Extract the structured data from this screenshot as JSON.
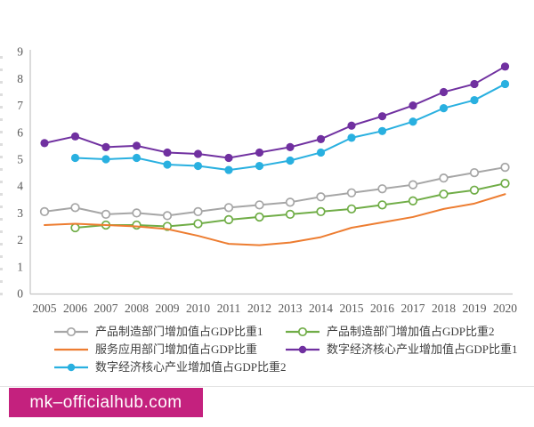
{
  "watermark": {
    "text": "mk–officialhub.com",
    "bg_color": "#c4217e",
    "text_color": "#ffffff"
  },
  "style": {
    "axis_line_color": "#c3c3c3",
    "tick_label_color": "#595959",
    "legend_text_color": "#404040",
    "border_line_color": "#e3e3e3"
  },
  "chart_data": {
    "type": "line",
    "title": "",
    "xlabel": "",
    "ylabel": "",
    "x": [
      2005,
      2006,
      2007,
      2008,
      2009,
      2010,
      2011,
      2012,
      2013,
      2014,
      2015,
      2016,
      2017,
      2018,
      2019,
      2020
    ],
    "ylim": [
      0,
      9
    ],
    "yticks": [
      0,
      1,
      2,
      3,
      4,
      5,
      6,
      7,
      8,
      9
    ],
    "grid": false,
    "legend_position": "bottom",
    "series": [
      {
        "name": "产品制造部门增加值占GDP比重1",
        "color": "#a6a6a6",
        "marker": "open-circle",
        "values": [
          3.05,
          3.2,
          2.95,
          3.0,
          2.9,
          3.05,
          3.2,
          3.3,
          3.4,
          3.6,
          3.75,
          3.9,
          4.05,
          4.3,
          4.5,
          4.7
        ]
      },
      {
        "name": "产品制造部门增加值占GDP比重2",
        "color": "#70ad47",
        "marker": "open-circle",
        "values": [
          null,
          2.45,
          2.55,
          2.55,
          2.5,
          2.6,
          2.75,
          2.85,
          2.95,
          3.05,
          3.15,
          3.3,
          3.45,
          3.7,
          3.85,
          4.1
        ]
      },
      {
        "name": "服务应用部门增加值占GDP比重",
        "color": "#ed7d31",
        "marker": "none",
        "values": [
          2.55,
          2.6,
          2.55,
          2.5,
          2.4,
          2.15,
          1.85,
          1.8,
          1.9,
          2.1,
          2.45,
          2.65,
          2.85,
          3.15,
          3.35,
          3.7
        ]
      },
      {
        "name": "数字经济核心产业增加值占GDP比重1",
        "color": "#7030a0",
        "marker": "filled-circle",
        "values": [
          5.6,
          5.85,
          5.45,
          5.5,
          5.25,
          5.2,
          5.05,
          5.25,
          5.45,
          5.75,
          6.25,
          6.6,
          7.0,
          7.5,
          7.8,
          8.45
        ]
      },
      {
        "name": "数字经济核心产业增加值占GDP比重2",
        "color": "#29b0e0",
        "marker": "filled-circle",
        "values": [
          null,
          5.05,
          5.0,
          5.05,
          4.8,
          4.75,
          4.6,
          4.75,
          4.95,
          5.25,
          5.8,
          6.05,
          6.4,
          6.9,
          7.2,
          7.8
        ]
      }
    ]
  },
  "legend": {
    "items": [
      {
        "label": "产品制造部门增加值占GDP比重1",
        "color": "#a6a6a6",
        "marker": "open-circle"
      },
      {
        "label": "产品制造部门增加值占GDP比重2",
        "color": "#70ad47",
        "marker": "open-circle"
      },
      {
        "label": "服务应用部门增加值占GDP比重",
        "color": "#ed7d31",
        "marker": "none"
      },
      {
        "label": "数字经济核心产业增加值占GDP比重1",
        "color": "#7030a0",
        "marker": "filled-circle"
      },
      {
        "label": "数字经济核心产业增加值占GDP比重2",
        "color": "#29b0e0",
        "marker": "filled-circle"
      }
    ]
  }
}
